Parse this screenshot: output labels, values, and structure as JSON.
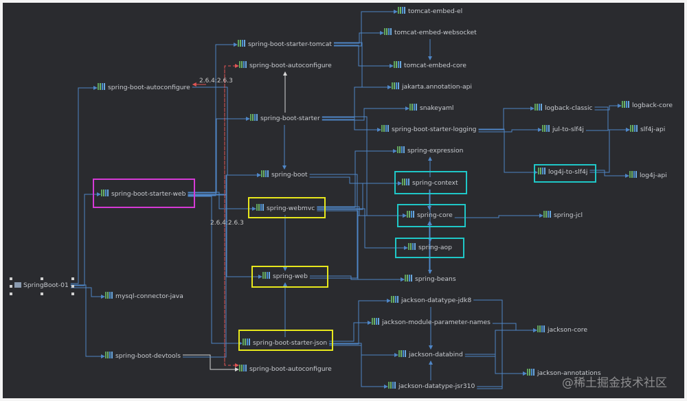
{
  "colors": {
    "background": "#2a2b2f",
    "edge": "#4f86c6",
    "conflict_edge": "#e05555",
    "highlight_magenta": "#d63ad6",
    "highlight_yellow": "#e8e81c",
    "highlight_cyan": "#1fc8c8"
  },
  "nodes": {
    "root": {
      "label": "SpringBoot-01",
      "icon": "project-icon"
    },
    "autoconf_left": {
      "label": "spring-boot-autoconfigure"
    },
    "starter_web": {
      "label": "spring-boot-starter-web"
    },
    "mysql": {
      "label": "mysql-connector-java"
    },
    "devtools": {
      "label": "spring-boot-devtools"
    },
    "starter_tomcat": {
      "label": "spring-boot-starter-tomcat"
    },
    "autoconf_top": {
      "label": "spring-boot-autoconfigure"
    },
    "starter": {
      "label": "spring-boot-starter"
    },
    "boot": {
      "label": "spring-boot"
    },
    "webmvc": {
      "label": "spring-webmvc"
    },
    "web": {
      "label": "spring-web"
    },
    "starter_json": {
      "label": "spring-boot-starter-json"
    },
    "autoconf_bottom": {
      "label": "spring-boot-autoconfigure"
    },
    "tomcat_el": {
      "label": "tomcat-embed-el"
    },
    "tomcat_ws": {
      "label": "tomcat-embed-websocket"
    },
    "tomcat_core": {
      "label": "tomcat-embed-core"
    },
    "jakarta": {
      "label": "jakarta.annotation-api"
    },
    "snakeyaml": {
      "label": "snakeyaml"
    },
    "logging": {
      "label": "spring-boot-starter-logging"
    },
    "expression": {
      "label": "spring-expression"
    },
    "context": {
      "label": "spring-context"
    },
    "core": {
      "label": "spring-core"
    },
    "aop": {
      "label": "spring-aop"
    },
    "beans": {
      "label": "spring-beans"
    },
    "jdk8": {
      "label": "jackson-datatype-jdk8"
    },
    "paramnames": {
      "label": "jackson-module-parameter-names"
    },
    "databind": {
      "label": "jackson-databind"
    },
    "jsr310": {
      "label": "jackson-datatype-jsr310"
    },
    "jackson_core": {
      "label": "jackson-core"
    },
    "annotations": {
      "label": "jackson-annotations"
    },
    "jcl": {
      "label": "spring-jcl"
    },
    "logback_classic": {
      "label": "logback-classic"
    },
    "jul": {
      "label": "jul-to-slf4j"
    },
    "log4j_slf4j": {
      "label": "log4j-to-slf4j"
    },
    "logback_core": {
      "label": "logback-core"
    },
    "slf4j": {
      "label": "slf4j-api"
    },
    "log4j_api": {
      "label": "log4j-api"
    }
  },
  "version_labels": [
    "2.6.4:2.6.3",
    "2.6.4:2.6.3"
  ],
  "edges": [
    [
      "root",
      "autoconf_left"
    ],
    [
      "root",
      "starter_web"
    ],
    [
      "root",
      "mysql"
    ],
    [
      "root",
      "devtools"
    ],
    [
      "starter_web",
      "starter_tomcat"
    ],
    [
      "starter_web",
      "starter"
    ],
    [
      "starter_web",
      "boot"
    ],
    [
      "starter_web",
      "webmvc"
    ],
    [
      "starter_web",
      "web"
    ],
    [
      "starter_web",
      "starter_json"
    ],
    [
      "autoconf_left",
      "boot"
    ],
    [
      "starter_tomcat",
      "tomcat_el"
    ],
    [
      "starter_tomcat",
      "tomcat_ws"
    ],
    [
      "starter_tomcat",
      "tomcat_core"
    ],
    [
      "starter_tomcat",
      "jakarta"
    ],
    [
      "tomcat_ws",
      "tomcat_core"
    ],
    [
      "starter",
      "autoconf_top"
    ],
    [
      "starter",
      "boot"
    ],
    [
      "starter",
      "snakeyaml"
    ],
    [
      "starter",
      "logging"
    ],
    [
      "starter",
      "jakarta"
    ],
    [
      "starter",
      "core"
    ],
    [
      "logging",
      "logback_classic"
    ],
    [
      "logging",
      "jul"
    ],
    [
      "logging",
      "log4j_slf4j"
    ],
    [
      "logback_classic",
      "logback_core"
    ],
    [
      "logback_classic",
      "slf4j"
    ],
    [
      "jul",
      "slf4j"
    ],
    [
      "log4j_slf4j",
      "log4j_api"
    ],
    [
      "log4j_slf4j",
      "slf4j"
    ],
    [
      "boot",
      "context"
    ],
    [
      "boot",
      "core"
    ],
    [
      "webmvc",
      "web"
    ],
    [
      "webmvc",
      "expression"
    ],
    [
      "webmvc",
      "context"
    ],
    [
      "webmvc",
      "core"
    ],
    [
      "webmvc",
      "aop"
    ],
    [
      "webmvc",
      "beans"
    ],
    [
      "context",
      "expression"
    ],
    [
      "context",
      "core"
    ],
    [
      "context",
      "aop"
    ],
    [
      "context",
      "beans"
    ],
    [
      "aop",
      "core"
    ],
    [
      "beans",
      "core"
    ],
    [
      "core",
      "jcl"
    ],
    [
      "web",
      "beans"
    ],
    [
      "web",
      "core"
    ],
    [
      "starter_json",
      "web"
    ],
    [
      "starter_json",
      "jdk8"
    ],
    [
      "starter_json",
      "paramnames"
    ],
    [
      "starter_json",
      "databind"
    ],
    [
      "starter_json",
      "jsr310"
    ],
    [
      "jdk8",
      "jackson_core"
    ],
    [
      "jdk8",
      "databind"
    ],
    [
      "paramnames",
      "databind"
    ],
    [
      "paramnames",
      "jackson_core"
    ],
    [
      "jsr310",
      "databind"
    ],
    [
      "jsr310",
      "annotations"
    ],
    [
      "jsr310",
      "jackson_core"
    ],
    [
      "databind",
      "annotations"
    ],
    [
      "databind",
      "jackson_core"
    ],
    [
      "devtools",
      "autoconf_bottom"
    ],
    [
      "devtools",
      "boot"
    ]
  ],
  "watermark": "@稀土掘金技术社区"
}
